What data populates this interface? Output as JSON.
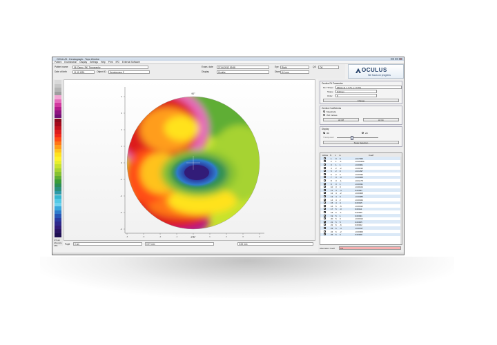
{
  "window": {
    "title": "OCULUS - Keratograph - Topo Zernike"
  },
  "menu": [
    "Patient",
    "Examination",
    "Display",
    "Settings",
    "Help",
    "Print",
    "IPD",
    "External Software"
  ],
  "patient": {
    "name_label": "Patient name",
    "name_value": "06_Demo_RK_Topography",
    "dob_label": "Date of birth",
    "dob_value": "11.11.1951",
    "exam_date_label": "Exam. date",
    "exam_date_value": "27.06.2012 09:58",
    "eye_label": "Eye",
    "eye_value": "Right",
    "qs_label": "QS",
    "qs_value": "OK",
    "display_label": "Display",
    "display_value": "Zernike",
    "diameter_label": "Diam.",
    "diameter_value": "8.0 mm",
    "object_label": "Object ID",
    "object_value": "Keratoconus Z"
  },
  "brand": {
    "name": "OCULUS",
    "tagline": "We focus on progress",
    "color": "#27436b"
  },
  "palette": {
    "colors": [
      "#d9d9d9",
      "#c7c7c7",
      "#b4b4b4",
      "#9e9e9e",
      "#f2a6d3",
      "#e66bbb",
      "#d23a9f",
      "#b31c8a",
      "#8f1480",
      "#701074",
      "#8b0a1c",
      "#a3091b",
      "#c1111c",
      "#dd1d1d",
      "#f22a1a",
      "#ff4d16",
      "#ff7618",
      "#ff9d1a",
      "#ffc21c",
      "#ffe21e",
      "#fff22a",
      "#e6ef2d",
      "#c7e22e",
      "#a6d330",
      "#86c131",
      "#5fae34",
      "#3c9c38",
      "#2b8e56",
      "#2a8f7c",
      "#2c9aa7",
      "#36b6cf",
      "#52c9e6",
      "#6fd3ef",
      "#3aa7dd",
      "#2f7ccb",
      "#2856b6",
      "#2b3aa0",
      "#2f2a8c",
      "#321c78",
      "#2a1664",
      "#1f1052"
    ],
    "labels_bottom": [
      "4.5 um",
      "Absolute",
      "ABs"
    ]
  },
  "plot": {
    "x_ticks": [
      "-4",
      "-3",
      "-2",
      "-1",
      "0",
      "1",
      "2",
      "3",
      "4"
    ],
    "y_ticks": [
      "4",
      "3",
      "2",
      "1",
      "0",
      "-1",
      "-2",
      "-3",
      "-4"
    ],
    "top_label": "90°",
    "bottom_label": "270°",
    "left_label": "180°",
    "right_label": "0°"
  },
  "bottom_bar": {
    "pupil_label": "Pupil",
    "pupil_value": "0 um",
    "f1": "0.97 mm",
    "f2": "0.00 mm"
  },
  "side": {
    "zernike_fit": {
      "title": "Zernike Fit Parameter",
      "ref_shape_label": "Ref. Shape",
      "ref_shape_value": "Ellipse (k = 7.75, e = 0.70)",
      "shape_label": "Shape",
      "shape_value": "8.00mm",
      "order_label": "Order",
      "order_value": "8",
      "change_btn": "Change"
    },
    "coefficients": {
      "title": "Zernike Coefficients",
      "opt1": "Magnitude",
      "opt2": "ISO Indices",
      "btn_all_off": "All Off",
      "btn_all_on": "All On"
    },
    "display": {
      "title": "Display",
      "opt1": "3D",
      "opt2": "2D",
      "slider_label": "Transparent",
      "btn_scale": "Scale Selection"
    }
  },
  "table": {
    "headers": [
      "Active",
      "N",
      "n",
      "m",
      "Coeff"
    ],
    "rows": [
      {
        "active": "☐",
        "N": "1",
        "n": "0",
        "m": "0",
        "coeff": "-0.07455"
      },
      {
        "active": "☐",
        "N": "2",
        "n": "1",
        "m": "-1",
        "coeff": "-0.006489"
      },
      {
        "active": "☑",
        "N": "3",
        "n": "1",
        "m": "1",
        "coeff": "-0.00061"
      },
      {
        "active": "☑",
        "N": "4",
        "n": "2",
        "m": "-2",
        "coeff": "-0.00193"
      },
      {
        "active": "☑",
        "N": "5",
        "n": "2",
        "m": "0",
        "coeff": "-0.01097"
      },
      {
        "active": "☑",
        "N": "6",
        "n": "2",
        "m": "2",
        "coeff": "-0.00036"
      },
      {
        "active": "☑",
        "N": "7",
        "n": "3",
        "m": "-3",
        "coeff": "-0.00068"
      },
      {
        "active": "☑",
        "N": "8",
        "n": "3",
        "m": "-1",
        "coeff": "-0.01178"
      },
      {
        "active": "☑",
        "N": "9",
        "n": "3",
        "m": "1",
        "coeff": "-0.00031"
      },
      {
        "active": "☑",
        "N": "10",
        "n": "3",
        "m": "3",
        "coeff": "-0.00104"
      },
      {
        "active": "☑",
        "N": "11",
        "n": "4",
        "m": "-4",
        "coeff": "0.00091"
      },
      {
        "active": "☑",
        "N": "12",
        "n": "4",
        "m": "-2",
        "coeff": "-0.00008"
      },
      {
        "active": "☑",
        "N": "13",
        "n": "4",
        "m": "0",
        "coeff": "-0.00085"
      },
      {
        "active": "☑",
        "N": "14",
        "n": "4",
        "m": "2",
        "coeff": "-0.00044"
      },
      {
        "active": "☑",
        "N": "15",
        "n": "4",
        "m": "4",
        "coeff": "0.00015"
      },
      {
        "active": "☑",
        "N": "16",
        "n": "5",
        "m": "-5",
        "coeff": "-0.00012"
      },
      {
        "active": "☑",
        "N": "17",
        "n": "5",
        "m": "-3",
        "coeff": "0.00111"
      },
      {
        "active": "☑",
        "N": "18",
        "n": "5",
        "m": "-1",
        "coeff": "0.00066"
      },
      {
        "active": "☑",
        "N": "19",
        "n": "5",
        "m": "1",
        "coeff": "0.00031"
      },
      {
        "active": "☑",
        "N": "20",
        "n": "5",
        "m": "3",
        "coeff": "-0.00014"
      },
      {
        "active": "☑",
        "N": "21",
        "n": "5",
        "m": "5",
        "coeff": "0.00005"
      },
      {
        "active": "☑",
        "N": "22",
        "n": "6",
        "m": "-6",
        "coeff": "0.00022"
      },
      {
        "active": "☑",
        "N": "23",
        "n": "6",
        "m": "-4",
        "coeff": "-0.00017"
      },
      {
        "active": "☑",
        "N": "24",
        "n": "6",
        "m": "-2",
        "coeff": "-0.00009"
      },
      {
        "active": "☑",
        "N": "25",
        "n": "6",
        "m": "0",
        "coeff": "0.00008"
      }
    ]
  },
  "aberration": {
    "label": "Aberration Coeff",
    "value": "0.0"
  }
}
